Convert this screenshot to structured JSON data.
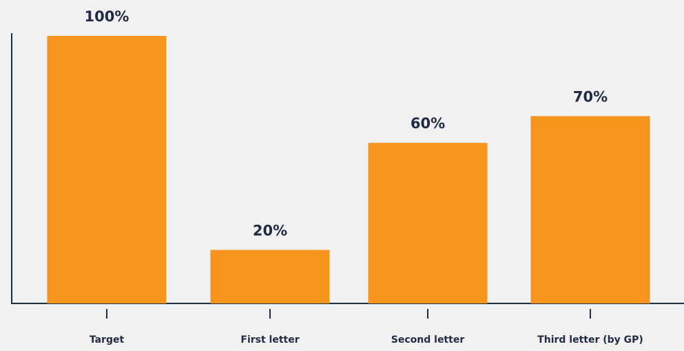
{
  "chart_data": {
    "type": "bar",
    "categories": [
      "Target",
      "First letter",
      "Second letter",
      "Third letter (by GP)"
    ],
    "values": [
      100,
      20,
      60,
      70
    ],
    "value_labels": [
      "100%",
      "20%",
      "60%",
      "70%"
    ],
    "color": "#f7941d",
    "ylim": [
      0,
      100
    ]
  }
}
